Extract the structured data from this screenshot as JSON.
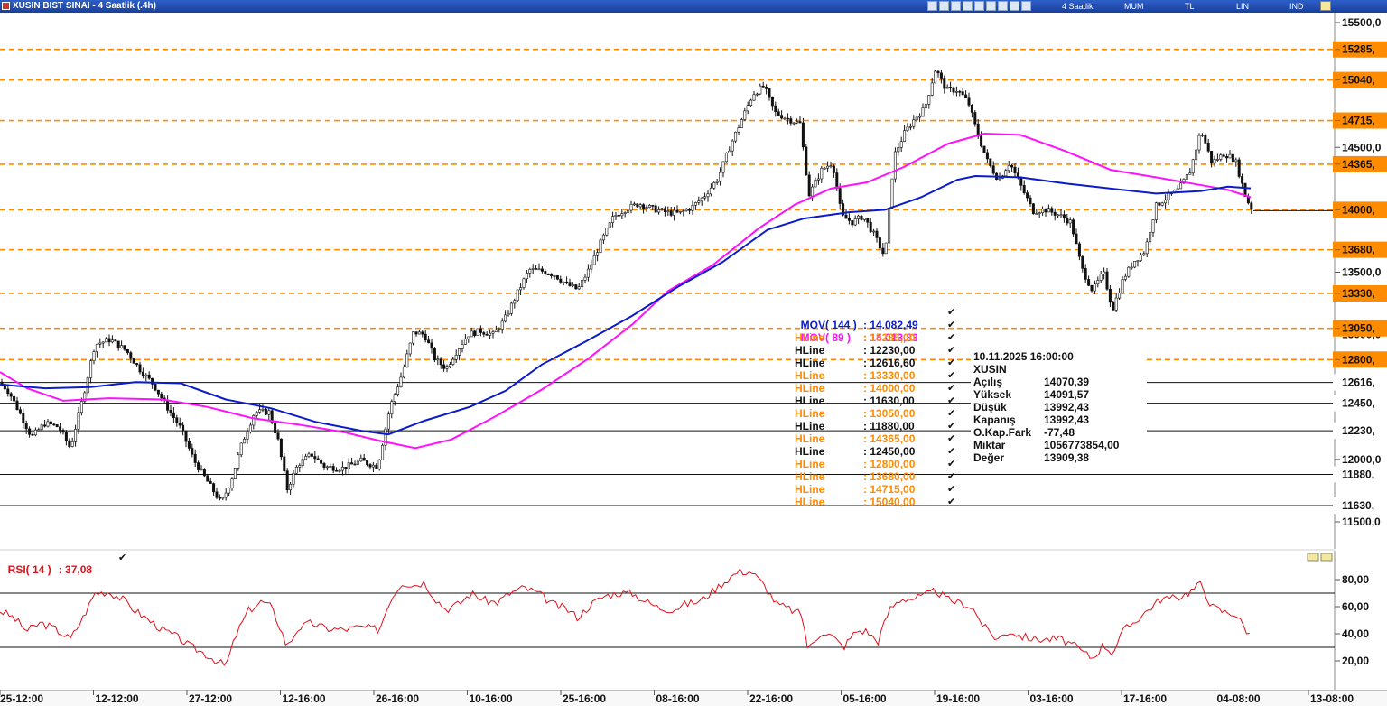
{
  "window": {
    "title": "XUSIN BIST SINAI - 4 Saatlik (.4h)",
    "toolbar_menu": [
      "4 Saatlik",
      "MUM",
      "TL",
      "LIN",
      "IND"
    ]
  },
  "colors": {
    "mov144": "#0a1acc",
    "mov89": "#ff10ff",
    "hline_orange": "#ff8c00",
    "hline_black": "#111111",
    "rsi": "#e0101a",
    "price_tag_bg": "#ff8c00"
  },
  "chart_data": [
    {
      "type": "candlestick",
      "instrument": "XUSIN",
      "ylim": [
        11280,
        15560
      ],
      "y_ticks": [
        "15500,0",
        "14500,0",
        "13500,0",
        "13000,0",
        "12000,0",
        "11500,0"
      ],
      "x_tick_labels": [
        "25-12:00",
        "12-12:00",
        "27-12:00",
        "12-16:00",
        "26-16:00",
        "10-16:00",
        "25-16:00",
        "08-16:00",
        "22-16:00",
        "05-16:00",
        "19-16:00",
        "03-16:00",
        "17-16:00",
        "04-08:00",
        "13-08:00"
      ],
      "approx_close_path": [
        [
          0,
          12620
        ],
        [
          10,
          12540
        ],
        [
          22,
          12370
        ],
        [
          35,
          12180
        ],
        [
          50,
          12290
        ],
        [
          65,
          12260
        ],
        [
          78,
          12090
        ],
        [
          92,
          12500
        ],
        [
          105,
          12920
        ],
        [
          122,
          12960
        ],
        [
          140,
          12870
        ],
        [
          155,
          12720
        ],
        [
          170,
          12600
        ],
        [
          185,
          12420
        ],
        [
          200,
          12250
        ],
        [
          215,
          11990
        ],
        [
          230,
          11820
        ],
        [
          245,
          11650
        ],
        [
          256,
          11830
        ],
        [
          268,
          12130
        ],
        [
          282,
          12380
        ],
        [
          298,
          12380
        ],
        [
          308,
          12150
        ],
        [
          318,
          11760
        ],
        [
          330,
          11960
        ],
        [
          345,
          12040
        ],
        [
          360,
          11940
        ],
        [
          380,
          11930
        ],
        [
          400,
          11990
        ],
        [
          418,
          11940
        ],
        [
          432,
          12420
        ],
        [
          445,
          12680
        ],
        [
          458,
          13020
        ],
        [
          470,
          13000
        ],
        [
          482,
          12800
        ],
        [
          494,
          12730
        ],
        [
          506,
          12870
        ],
        [
          518,
          13000
        ],
        [
          532,
          13030
        ],
        [
          546,
          13000
        ],
        [
          558,
          13110
        ],
        [
          572,
          13320
        ],
        [
          586,
          13520
        ],
        [
          600,
          13510
        ],
        [
          614,
          13480
        ],
        [
          628,
          13400
        ],
        [
          640,
          13360
        ],
        [
          652,
          13520
        ],
        [
          666,
          13750
        ],
        [
          680,
          13950
        ],
        [
          694,
          14010
        ],
        [
          708,
          14050
        ],
        [
          722,
          14010
        ],
        [
          738,
          13980
        ],
        [
          752,
          13970
        ],
        [
          766,
          14020
        ],
        [
          780,
          14110
        ],
        [
          795,
          14250
        ],
        [
          808,
          14500
        ],
        [
          820,
          14700
        ],
        [
          834,
          14930
        ],
        [
          846,
          14990
        ],
        [
          858,
          14780
        ],
        [
          872,
          14730
        ],
        [
          886,
          14690
        ],
        [
          896,
          14120
        ],
        [
          910,
          14320
        ],
        [
          922,
          14380
        ],
        [
          932,
          13950
        ],
        [
          944,
          13900
        ],
        [
          956,
          13950
        ],
        [
          968,
          13800
        ],
        [
          980,
          13620
        ],
        [
          990,
          14430
        ],
        [
          1002,
          14620
        ],
        [
          1014,
          14740
        ],
        [
          1024,
          14810
        ],
        [
          1036,
          15130
        ],
        [
          1048,
          14960
        ],
        [
          1060,
          14960
        ],
        [
          1072,
          14870
        ],
        [
          1082,
          14620
        ],
        [
          1094,
          14380
        ],
        [
          1106,
          14240
        ],
        [
          1118,
          14380
        ],
        [
          1130,
          14200
        ],
        [
          1144,
          13990
        ],
        [
          1158,
          14000
        ],
        [
          1172,
          13960
        ],
        [
          1186,
          13900
        ],
        [
          1198,
          13530
        ],
        [
          1210,
          13350
        ],
        [
          1222,
          13500
        ],
        [
          1232,
          13200
        ],
        [
          1244,
          13450
        ],
        [
          1256,
          13590
        ],
        [
          1268,
          13670
        ],
        [
          1280,
          14030
        ],
        [
          1292,
          14100
        ],
        [
          1305,
          14160
        ],
        [
          1318,
          14310
        ],
        [
          1330,
          14640
        ],
        [
          1342,
          14380
        ],
        [
          1356,
          14450
        ],
        [
          1368,
          14400
        ],
        [
          1380,
          14090
        ],
        [
          1388,
          13992
        ]
      ]
    },
    {
      "type": "line",
      "name": "MOV( 144 )",
      "last_value": "14.082,49",
      "approx_path": [
        [
          0,
          12600
        ],
        [
          50,
          12570
        ],
        [
          100,
          12580
        ],
        [
          150,
          12620
        ],
        [
          200,
          12610
        ],
        [
          250,
          12480
        ],
        [
          300,
          12410
        ],
        [
          350,
          12300
        ],
        [
          400,
          12230
        ],
        [
          430,
          12200
        ],
        [
          470,
          12310
        ],
        [
          520,
          12420
        ],
        [
          560,
          12550
        ],
        [
          600,
          12760
        ],
        [
          650,
          12950
        ],
        [
          700,
          13150
        ],
        [
          750,
          13380
        ],
        [
          800,
          13580
        ],
        [
          850,
          13840
        ],
        [
          890,
          13930
        ],
        [
          940,
          13980
        ],
        [
          980,
          14000
        ],
        [
          1020,
          14100
        ],
        [
          1060,
          14240
        ],
        [
          1080,
          14270
        ],
        [
          1130,
          14260
        ],
        [
          1180,
          14210
        ],
        [
          1230,
          14170
        ],
        [
          1280,
          14130
        ],
        [
          1330,
          14150
        ],
        [
          1360,
          14185
        ],
        [
          1385,
          14172
        ]
      ]
    },
    {
      "type": "line",
      "name": "MOV( 89 )",
      "last_value": "14.013,83",
      "approx_path": [
        [
          0,
          12700
        ],
        [
          30,
          12570
        ],
        [
          70,
          12470
        ],
        [
          120,
          12490
        ],
        [
          180,
          12480
        ],
        [
          230,
          12420
        ],
        [
          280,
          12330
        ],
        [
          330,
          12280
        ],
        [
          380,
          12220
        ],
        [
          420,
          12150
        ],
        [
          460,
          12090
        ],
        [
          500,
          12160
        ],
        [
          550,
          12350
        ],
        [
          600,
          12560
        ],
        [
          650,
          12800
        ],
        [
          700,
          13080
        ],
        [
          740,
          13350
        ],
        [
          790,
          13560
        ],
        [
          840,
          13850
        ],
        [
          880,
          14040
        ],
        [
          920,
          14170
        ],
        [
          960,
          14220
        ],
        [
          1000,
          14340
        ],
        [
          1050,
          14530
        ],
        [
          1090,
          14610
        ],
        [
          1130,
          14600
        ],
        [
          1180,
          14470
        ],
        [
          1230,
          14320
        ],
        [
          1280,
          14260
        ],
        [
          1320,
          14210
        ],
        [
          1360,
          14160
        ],
        [
          1385,
          14100
        ]
      ]
    },
    {
      "type": "hlines",
      "lines": [
        {
          "label": "HLine",
          "value": "15285,00",
          "tag": "15285,",
          "color": "orange",
          "y": 15285
        },
        {
          "label": "HLine",
          "value": "12230,00",
          "tag": "12230,",
          "color": "black",
          "y": 12230
        },
        {
          "label": "HLine",
          "value": "12616,60",
          "tag": "12616,",
          "color": "black",
          "y": 12616.6
        },
        {
          "label": "HLine",
          "value": "13330,00",
          "tag": "13330,",
          "color": "orange",
          "y": 13330
        },
        {
          "label": "HLine",
          "value": "14000,00",
          "tag": "14000,",
          "color": "orange",
          "y": 14000
        },
        {
          "label": "HLine",
          "value": "11630,00",
          "tag": "11630,",
          "color": "black",
          "y": 11630
        },
        {
          "label": "HLine",
          "value": "13050,00",
          "tag": "13050,",
          "color": "orange",
          "y": 13050
        },
        {
          "label": "HLine",
          "value": "11880,00",
          "tag": "11880,",
          "color": "black",
          "y": 11880
        },
        {
          "label": "HLine",
          "value": "14365,00",
          "tag": "14365,",
          "color": "orange",
          "y": 14365
        },
        {
          "label": "HLine",
          "value": "12450,00",
          "tag": "12450,",
          "color": "black",
          "y": 12450
        },
        {
          "label": "HLine",
          "value": "12800,00",
          "tag": "12800,",
          "color": "orange",
          "y": 12800
        },
        {
          "label": "HLine",
          "value": "13680,00",
          "tag": "13680,",
          "color": "orange",
          "y": 13680
        },
        {
          "label": "HLine",
          "value": "14715,00",
          "tag": "14715,",
          "color": "orange",
          "y": 14715
        },
        {
          "label": "HLine",
          "value": "15040,00",
          "tag": "15040,",
          "color": "orange",
          "y": 15040
        }
      ]
    },
    {
      "type": "line",
      "name": "RSI( 14 )",
      "last_value": "37,08",
      "ylim": [
        8,
        90
      ],
      "reference_lines": [
        70,
        30
      ],
      "y_ticks": [
        "80,00",
        "60,00",
        "40,00",
        "20,00"
      ],
      "approx_path": [
        [
          0,
          57
        ],
        [
          15,
          52
        ],
        [
          30,
          42
        ],
        [
          45,
          48
        ],
        [
          60,
          44
        ],
        [
          78,
          36
        ],
        [
          92,
          52
        ],
        [
          105,
          70
        ],
        [
          120,
          71
        ],
        [
          135,
          66
        ],
        [
          150,
          57
        ],
        [
          165,
          50
        ],
        [
          180,
          43
        ],
        [
          195,
          38
        ],
        [
          210,
          31
        ],
        [
          225,
          26
        ],
        [
          240,
          20
        ],
        [
          250,
          16
        ],
        [
          262,
          40
        ],
        [
          275,
          57
        ],
        [
          290,
          64
        ],
        [
          300,
          60
        ],
        [
          310,
          45
        ],
        [
          318,
          30
        ],
        [
          330,
          44
        ],
        [
          345,
          48
        ],
        [
          360,
          44
        ],
        [
          380,
          43
        ],
        [
          400,
          45
        ],
        [
          420,
          43
        ],
        [
          432,
          65
        ],
        [
          445,
          78
        ],
        [
          458,
          76
        ],
        [
          470,
          78
        ],
        [
          482,
          66
        ],
        [
          494,
          58
        ],
        [
          508,
          62
        ],
        [
          522,
          70
        ],
        [
          536,
          65
        ],
        [
          550,
          63
        ],
        [
          565,
          70
        ],
        [
          580,
          74
        ],
        [
          596,
          70
        ],
        [
          612,
          62
        ],
        [
          628,
          58
        ],
        [
          640,
          52
        ],
        [
          655,
          62
        ],
        [
          670,
          68
        ],
        [
          684,
          70
        ],
        [
          700,
          70
        ],
        [
          715,
          64
        ],
        [
          730,
          59
        ],
        [
          745,
          58
        ],
        [
          760,
          62
        ],
        [
          775,
          64
        ],
        [
          790,
          72
        ],
        [
          805,
          80
        ],
        [
          818,
          86
        ],
        [
          832,
          86
        ],
        [
          846,
          76
        ],
        [
          860,
          62
        ],
        [
          875,
          58
        ],
        [
          888,
          54
        ],
        [
          895,
          28
        ],
        [
          910,
          42
        ],
        [
          922,
          38
        ],
        [
          934,
          30
        ],
        [
          948,
          42
        ],
        [
          960,
          42
        ],
        [
          972,
          34
        ],
        [
          985,
          58
        ],
        [
          998,
          66
        ],
        [
          1012,
          66
        ],
        [
          1024,
          68
        ],
        [
          1036,
          72
        ],
        [
          1050,
          65
        ],
        [
          1062,
          63
        ],
        [
          1076,
          60
        ],
        [
          1090,
          45
        ],
        [
          1104,
          36
        ],
        [
          1118,
          42
        ],
        [
          1132,
          38
        ],
        [
          1146,
          36
        ],
        [
          1160,
          36
        ],
        [
          1174,
          36
        ],
        [
          1188,
          32
        ],
        [
          1200,
          26
        ],
        [
          1210,
          22
        ],
        [
          1222,
          32
        ],
        [
          1232,
          26
        ],
        [
          1244,
          42
        ],
        [
          1258,
          50
        ],
        [
          1272,
          58
        ],
        [
          1286,
          66
        ],
        [
          1300,
          66
        ],
        [
          1315,
          70
        ],
        [
          1330,
          77
        ],
        [
          1342,
          60
        ],
        [
          1356,
          56
        ],
        [
          1368,
          55
        ],
        [
          1378,
          45
        ],
        [
          1386,
          37
        ]
      ]
    }
  ],
  "overlay_legend": {
    "mov144": {
      "label": "MOV( 144 )",
      "value": ": 14.082,49"
    },
    "mov89": {
      "label": "MOV( 89 )",
      "value": ": 14.013,83"
    }
  },
  "info_panel": {
    "datetime": "10.11.2025  16:00:00",
    "symbol": "XUSIN",
    "rows": [
      {
        "k": "Açılış",
        "v": "14070,39"
      },
      {
        "k": "Yüksek",
        "v": "14091,57"
      },
      {
        "k": "Düşük",
        "v": "13992,43"
      },
      {
        "k": "Kapanış",
        "v": "13992,43"
      },
      {
        "k": "O.Kap.Fark",
        "v": "-77,48"
      },
      {
        "k": "Miktar",
        "v": "1056773854,00"
      },
      {
        "k": "Değer",
        "v": "13909,38"
      }
    ]
  },
  "rsi_label": {
    "name": "RSI( 14 )",
    "value": ": 37,08"
  },
  "check_glyph": "✔"
}
